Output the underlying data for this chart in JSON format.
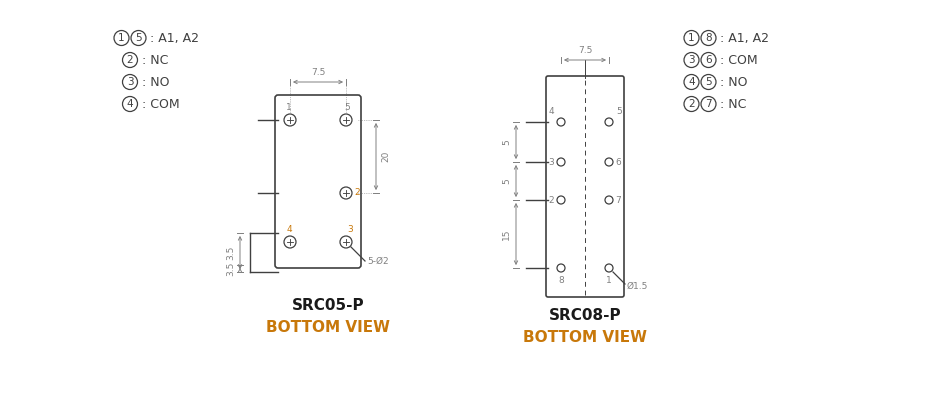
{
  "bg_color": "#ffffff",
  "line_color": "#404040",
  "dim_color": "#808080",
  "orange_color": "#c8780a",
  "title1": "SRC05-P",
  "title2": "SRC08-P",
  "subtitle": "BOTTOM VIEW",
  "legend1_items": [
    {
      "nums": [
        "1",
        "5"
      ],
      "text": ": A1, A2"
    },
    {
      "nums": [
        "2"
      ],
      "text": ": NC"
    },
    {
      "nums": [
        "3"
      ],
      "text": ": NO"
    },
    {
      "nums": [
        "4"
      ],
      "text": ": COM"
    }
  ],
  "legend2_items": [
    {
      "nums": [
        "1",
        "8"
      ],
      "text": ": A1, A2"
    },
    {
      "nums": [
        "3",
        "6"
      ],
      "text": ": COM"
    },
    {
      "nums": [
        "4",
        "5"
      ],
      "text": ": NO"
    },
    {
      "nums": [
        "2",
        "7"
      ],
      "text": ": NC"
    }
  ]
}
